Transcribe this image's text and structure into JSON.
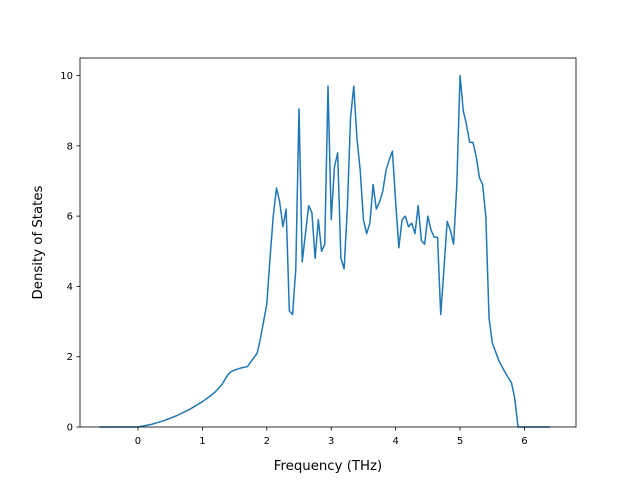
{
  "chart_data": {
    "type": "line",
    "title": "",
    "xlabel": "Frequency (THz)",
    "ylabel": "Density of States",
    "xlim": [
      -0.9,
      6.8
    ],
    "ylim": [
      0,
      10.5
    ],
    "xticks": [
      0,
      1,
      2,
      3,
      4,
      5,
      6
    ],
    "yticks": [
      0,
      2,
      4,
      6,
      8,
      10
    ],
    "grid": false,
    "line_color": "#1f77b4",
    "series": [
      {
        "x": [
          -0.6,
          0.0,
          0.2,
          0.4,
          0.6,
          0.8,
          1.0,
          1.1,
          1.2,
          1.3,
          1.35,
          1.4,
          1.45,
          1.5,
          1.6,
          1.7,
          1.75,
          1.85,
          1.9,
          2.0,
          2.05,
          2.1,
          2.15,
          2.2,
          2.25,
          2.3,
          2.35,
          2.4,
          2.45,
          2.5,
          2.55,
          2.6,
          2.65,
          2.7,
          2.75,
          2.8,
          2.85,
          2.9,
          2.95,
          3.0,
          3.05,
          3.1,
          3.15,
          3.2,
          3.25,
          3.3,
          3.35,
          3.4,
          3.45,
          3.5,
          3.55,
          3.6,
          3.65,
          3.7,
          3.75,
          3.8,
          3.85,
          3.9,
          3.95,
          4.0,
          4.05,
          4.1,
          4.15,
          4.2,
          4.25,
          4.3,
          4.35,
          4.4,
          4.45,
          4.5,
          4.55,
          4.6,
          4.65,
          4.7,
          4.75,
          4.8,
          4.85,
          4.9,
          4.95,
          5.0,
          5.05,
          5.1,
          5.15,
          5.2,
          5.25,
          5.3,
          5.35,
          5.4,
          5.45,
          5.5,
          5.6,
          5.7,
          5.8,
          5.85,
          5.9,
          6.0,
          6.2,
          6.4
        ],
        "y": [
          0.0,
          0.0,
          0.07,
          0.18,
          0.32,
          0.5,
          0.72,
          0.85,
          1.0,
          1.2,
          1.35,
          1.5,
          1.58,
          1.62,
          1.68,
          1.72,
          1.85,
          2.1,
          2.5,
          3.5,
          4.8,
          6.0,
          6.8,
          6.4,
          5.7,
          6.2,
          3.3,
          3.2,
          4.5,
          9.05,
          4.7,
          5.5,
          6.3,
          6.1,
          4.8,
          5.9,
          5.0,
          5.2,
          9.7,
          5.9,
          7.4,
          7.8,
          4.8,
          4.5,
          6.2,
          8.8,
          9.7,
          8.2,
          7.3,
          5.9,
          5.5,
          5.8,
          6.9,
          6.2,
          6.4,
          6.7,
          7.3,
          7.6,
          7.85,
          6.4,
          5.1,
          5.9,
          6.0,
          5.7,
          5.8,
          5.5,
          6.3,
          5.3,
          5.2,
          6.0,
          5.6,
          5.4,
          5.4,
          3.2,
          4.5,
          5.85,
          5.6,
          5.2,
          6.9,
          10.0,
          9.0,
          8.6,
          8.1,
          8.1,
          7.7,
          7.1,
          6.9,
          6.0,
          3.1,
          2.4,
          1.9,
          1.55,
          1.25,
          0.8,
          0.0,
          0.0,
          0.0,
          0.0
        ]
      }
    ]
  }
}
